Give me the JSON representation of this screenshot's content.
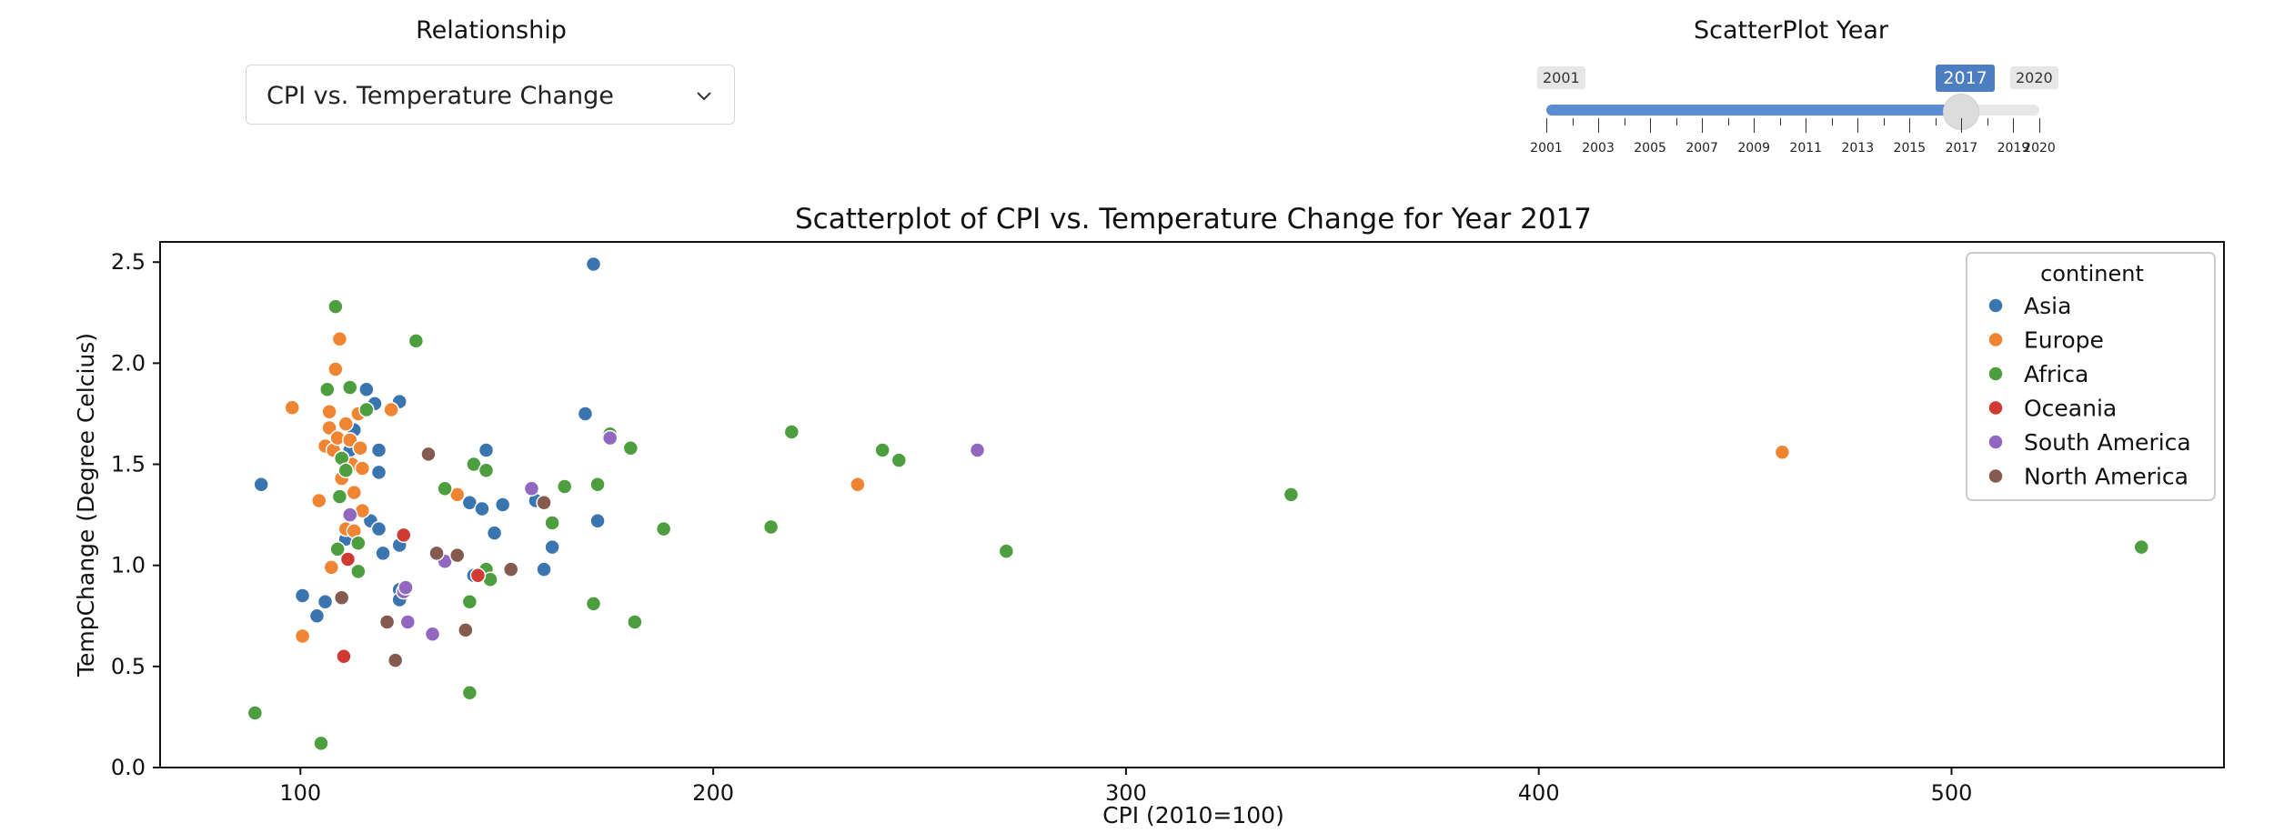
{
  "controls": {
    "relationship_label": "Relationship",
    "relationship_value": "CPI vs. Temperature Change",
    "year_label": "ScatterPlot Year",
    "year_min": "2001",
    "year_max": "2020",
    "year_value": "2017",
    "year_min_num": 2001,
    "year_max_num": 2020,
    "year_value_num": 2017,
    "year_ticks": [
      "2001",
      "2003",
      "2005",
      "2007",
      "2009",
      "2011",
      "2013",
      "2015",
      "2017",
      "2019",
      "2020"
    ]
  },
  "colors": {
    "Asia": "#3a75b0",
    "Europe": "#ef8533",
    "Africa": "#4d9e3f",
    "Oceania": "#d03a33",
    "South America": "#9167c0",
    "North America": "#845b4e",
    "slider_track": "#5b8dd3",
    "slider_badge": "#4d7ec2"
  },
  "chart_data": {
    "type": "scatter",
    "title": "Scatterplot of CPI vs. Temperature Change for Year 2017",
    "xlabel": "CPI (2010=100)",
    "ylabel": "TempChange (Degree Celcius)",
    "xlim": [
      66,
      566
    ],
    "ylim": [
      0,
      2.6
    ],
    "xticks": [
      100,
      200,
      300,
      400,
      500
    ],
    "yticks": [
      0.0,
      0.5,
      1.0,
      1.5,
      2.0,
      2.5
    ],
    "grid": false,
    "legend": {
      "title": "continent",
      "position": "top-right",
      "entries": [
        "Asia",
        "Europe",
        "Africa",
        "Oceania",
        "South America",
        "North America"
      ]
    },
    "series": [
      {
        "name": "Asia",
        "points": [
          [
            90.5,
            1.4
          ],
          [
            100.5,
            0.85
          ],
          [
            104,
            0.75
          ],
          [
            106,
            0.82
          ],
          [
            111,
            1.13
          ],
          [
            112,
            1.57
          ],
          [
            113,
            1.67
          ],
          [
            116,
            1.87
          ],
          [
            117,
            1.22
          ],
          [
            118,
            1.8
          ],
          [
            119,
            1.57
          ],
          [
            119,
            1.46
          ],
          [
            119,
            1.18
          ],
          [
            120,
            1.06
          ],
          [
            124,
            0.88
          ],
          [
            124,
            1.81
          ],
          [
            124,
            1.1
          ],
          [
            124,
            0.83
          ],
          [
            141,
            1.31
          ],
          [
            142,
            0.95
          ],
          [
            144,
            1.28
          ],
          [
            145,
            1.57
          ],
          [
            147,
            1.16
          ],
          [
            149,
            1.3
          ],
          [
            157,
            1.32
          ],
          [
            159,
            0.98
          ],
          [
            161,
            1.09
          ],
          [
            169,
            1.75
          ],
          [
            171,
            2.49
          ],
          [
            172,
            1.22
          ]
        ]
      },
      {
        "name": "Europe",
        "points": [
          [
            98,
            1.78
          ],
          [
            100.5,
            0.65
          ],
          [
            104.5,
            1.32
          ],
          [
            106,
            1.59
          ],
          [
            107,
            1.68
          ],
          [
            107,
            1.76
          ],
          [
            107.5,
            0.99
          ],
          [
            108,
            1.57
          ],
          [
            108.5,
            1.97
          ],
          [
            109,
            1.63
          ],
          [
            109.5,
            2.12
          ],
          [
            110,
            1.43
          ],
          [
            110,
            1.53
          ],
          [
            111,
            1.7
          ],
          [
            111,
            1.18
          ],
          [
            112,
            1.62
          ],
          [
            112.5,
            1.5
          ],
          [
            113,
            1.36
          ],
          [
            113,
            1.17
          ],
          [
            114,
            1.75
          ],
          [
            114.5,
            1.58
          ],
          [
            115,
            1.27
          ],
          [
            115,
            1.48
          ],
          [
            122,
            1.77
          ],
          [
            138,
            1.35
          ],
          [
            235,
            1.4
          ],
          [
            459,
            1.56
          ]
        ]
      },
      {
        "name": "Africa",
        "points": [
          [
            89,
            0.27
          ],
          [
            105,
            0.12
          ],
          [
            106.5,
            1.87
          ],
          [
            108.5,
            2.28
          ],
          [
            109,
            1.08
          ],
          [
            109.5,
            1.34
          ],
          [
            110,
            1.53
          ],
          [
            111,
            1.47
          ],
          [
            112,
            1.88
          ],
          [
            114,
            1.11
          ],
          [
            114,
            0.97
          ],
          [
            116,
            1.77
          ],
          [
            128,
            2.11
          ],
          [
            135,
            1.38
          ],
          [
            141,
            0.37
          ],
          [
            141,
            0.82
          ],
          [
            142,
            1.5
          ],
          [
            145,
            1.47
          ],
          [
            145,
            0.98
          ],
          [
            146,
            0.93
          ],
          [
            161,
            1.21
          ],
          [
            164,
            1.39
          ],
          [
            171,
            0.81
          ],
          [
            172,
            1.4
          ],
          [
            175,
            1.65
          ],
          [
            180,
            1.58
          ],
          [
            181,
            0.72
          ],
          [
            188,
            1.18
          ],
          [
            214,
            1.19
          ],
          [
            219,
            1.66
          ],
          [
            241,
            1.57
          ],
          [
            245,
            1.52
          ],
          [
            271,
            1.07
          ],
          [
            340,
            1.35
          ],
          [
            546,
            1.09
          ]
        ]
      },
      {
        "name": "Oceania",
        "points": [
          [
            110.5,
            0.55
          ],
          [
            111.5,
            1.03
          ],
          [
            125,
            1.15
          ],
          [
            143,
            0.95
          ]
        ]
      },
      {
        "name": "South America",
        "points": [
          [
            112,
            1.25
          ],
          [
            125,
            0.87
          ],
          [
            125.5,
            0.89
          ],
          [
            126,
            0.72
          ],
          [
            132,
            0.66
          ],
          [
            135,
            1.02
          ],
          [
            156,
            1.38
          ],
          [
            175,
            1.63
          ],
          [
            264,
            1.57
          ]
        ]
      },
      {
        "name": "North America",
        "points": [
          [
            110,
            0.84
          ],
          [
            121,
            0.72
          ],
          [
            123,
            0.53
          ],
          [
            131,
            1.55
          ],
          [
            133,
            1.06
          ],
          [
            138,
            1.05
          ],
          [
            140,
            0.68
          ],
          [
            151,
            0.98
          ],
          [
            159,
            1.31
          ]
        ]
      }
    ]
  }
}
